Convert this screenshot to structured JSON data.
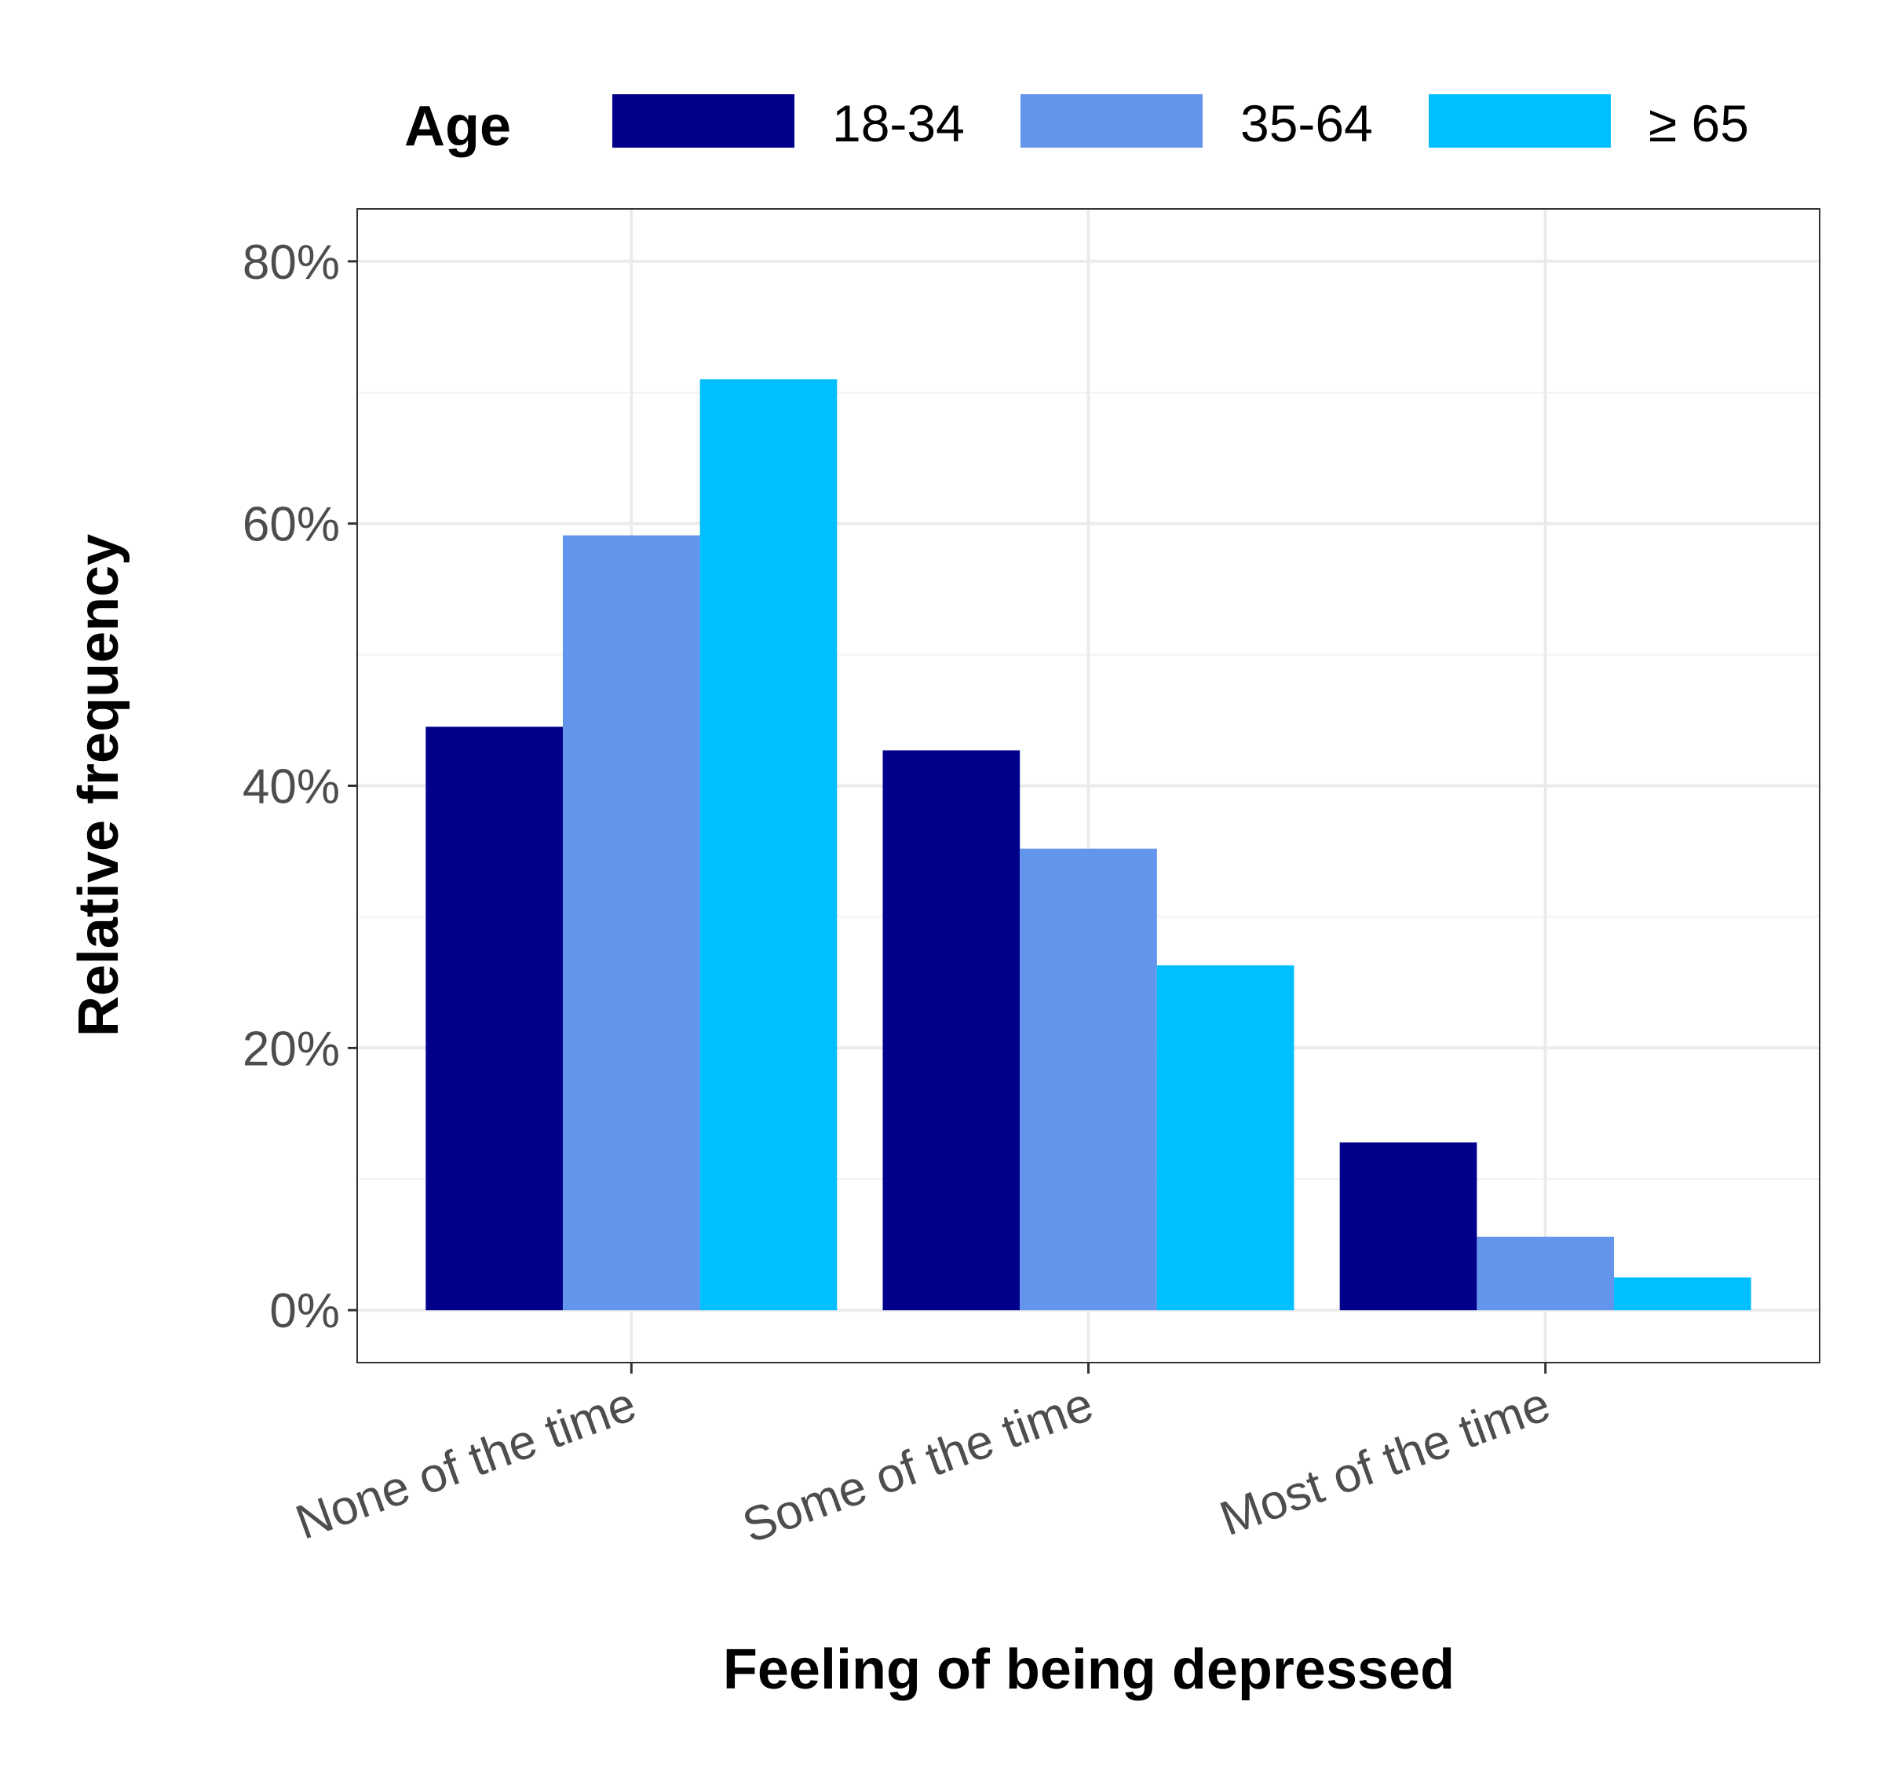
{
  "chart_data": {
    "type": "bar",
    "categories": [
      "None of the time",
      "Some of the time",
      "Most of the time"
    ],
    "series": [
      {
        "name": "18-34",
        "color": "#00008B",
        "values": [
          44.5,
          42.7,
          12.8
        ]
      },
      {
        "name": "35-64",
        "color": "#6495ED",
        "values": [
          59.1,
          35.2,
          5.6
        ]
      },
      {
        "name": "≥ 65",
        "color": "#00BFFF",
        "values": [
          71.0,
          26.3,
          2.5
        ]
      }
    ],
    "title": "",
    "xlabel": "Feeling of being depressed",
    "ylabel": "Relative frequency",
    "ylim": [
      -4,
      84
    ],
    "yticks": [
      0,
      20,
      40,
      60,
      80
    ],
    "ytick_labels": [
      "0%",
      "20%",
      "40%",
      "60%",
      "80%"
    ],
    "grid": true,
    "legend": {
      "title": "Age",
      "position": "top"
    }
  }
}
